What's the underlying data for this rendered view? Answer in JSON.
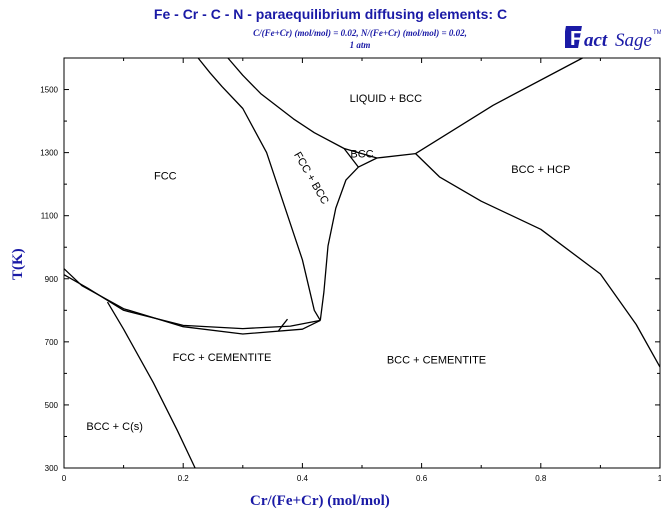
{
  "header": {
    "title": "Fe - Cr - C - N  -  paraequilibrium diffusing elements: C",
    "subtitle_line1": "C/(Fe+Cr) (mol/mol)  = 0.02,  N/(Fe+Cr) (mol/mol)  = 0.02,",
    "subtitle_line2": "1 atm",
    "logo_text": "FactSage",
    "logo_tm": "TM"
  },
  "colors": {
    "title": "#1a1aa6",
    "line": "#000000",
    "background": "#ffffff"
  },
  "chart_data": {
    "type": "line",
    "title": "Fe - Cr - C - N  -  paraequilibrium diffusing elements: C",
    "xlabel": "Cr/(Fe+Cr) (mol/mol)",
    "ylabel": "T(K)",
    "xlim": [
      0,
      1
    ],
    "ylim": [
      300,
      1600
    ],
    "xticks": [
      0,
      0.2,
      0.4,
      0.6,
      0.8,
      1
    ],
    "xtick_labels": [
      "0",
      "0.2",
      "0.4",
      "0.6",
      "0.8",
      "1"
    ],
    "yticks": [
      300,
      500,
      700,
      900,
      1100,
      1300,
      1500
    ],
    "ytick_labels": [
      "300",
      "500",
      "700",
      "900",
      "1100",
      "1300",
      "1500"
    ],
    "grid": false,
    "series": [
      {
        "points": [
          [
            0,
            932
          ],
          [
            0.03,
            878
          ],
          [
            0.1,
            805
          ],
          [
            0.2,
            748
          ],
          [
            0.3,
            725
          ],
          [
            0.4,
            740
          ],
          [
            0.43,
            768
          ]
        ]
      },
      {
        "points": [
          [
            0,
            913
          ],
          [
            0.04,
            870
          ],
          [
            0.1,
            800
          ],
          [
            0.2,
            752
          ],
          [
            0.3,
            742
          ],
          [
            0.38,
            750
          ],
          [
            0.43,
            768
          ]
        ]
      },
      {
        "points": [
          [
            0.43,
            768
          ],
          [
            0.436,
            858
          ],
          [
            0.443,
            1004
          ],
          [
            0.456,
            1124
          ],
          [
            0.473,
            1213
          ],
          [
            0.494,
            1254
          ]
        ]
      },
      {
        "points": [
          [
            0.43,
            768
          ],
          [
            0.42,
            800
          ],
          [
            0.4,
            960
          ],
          [
            0.37,
            1130
          ],
          [
            0.34,
            1300
          ],
          [
            0.3,
            1440
          ],
          [
            0.265,
            1510
          ],
          [
            0.245,
            1553
          ],
          [
            0.225,
            1600
          ]
        ]
      },
      {
        "points": [
          [
            0.275,
            1600
          ],
          [
            0.3,
            1545
          ],
          [
            0.33,
            1487
          ],
          [
            0.385,
            1407
          ],
          [
            0.42,
            1363
          ],
          [
            0.47,
            1313
          ],
          [
            0.494,
            1254
          ]
        ]
      },
      {
        "points": [
          [
            0.494,
            1254
          ],
          [
            0.525,
            1283
          ],
          [
            0.47,
            1313
          ]
        ]
      },
      {
        "points": [
          [
            0.525,
            1283
          ],
          [
            0.59,
            1297
          ]
        ]
      },
      {
        "points": [
          [
            0.59,
            1297
          ],
          [
            0.72,
            1450
          ],
          [
            0.87,
            1600
          ]
        ]
      },
      {
        "points": [
          [
            0.59,
            1297
          ],
          [
            0.63,
            1223
          ],
          [
            0.7,
            1146
          ],
          [
            0.8,
            1057
          ],
          [
            0.9,
            915
          ],
          [
            0.96,
            755
          ],
          [
            1,
            620
          ]
        ]
      },
      {
        "points": [
          [
            0.073,
            826
          ],
          [
            0.1,
            740
          ],
          [
            0.15,
            570
          ],
          [
            0.19,
            420
          ],
          [
            0.22,
            300
          ]
        ]
      },
      {
        "points": [
          [
            0.36,
            735
          ],
          [
            0.365,
            748
          ],
          [
            0.375,
            772
          ]
        ]
      }
    ],
    "annotations": [
      {
        "text": "LIQUID + BCC",
        "x": 0.54,
        "y": 1461,
        "rotate": 0
      },
      {
        "text": "BCC",
        "x": 0.5,
        "y": 1285,
        "rotate": 0
      },
      {
        "text": "FCC",
        "x": 0.17,
        "y": 1214,
        "rotate": 0
      },
      {
        "text": "FCC + BCC",
        "x": 0.41,
        "y": 1214,
        "rotate": 60
      },
      {
        "text": "BCC + HCP",
        "x": 0.8,
        "y": 1235,
        "rotate": 0
      },
      {
        "text": "FCC + CEMENTITE",
        "x": 0.265,
        "y": 640,
        "rotate": 0
      },
      {
        "text": "BCC + CEMENTITE",
        "x": 0.625,
        "y": 631,
        "rotate": 0
      },
      {
        "text": "BCC + C(s)",
        "x": 0.085,
        "y": 420,
        "rotate": 0
      }
    ]
  }
}
